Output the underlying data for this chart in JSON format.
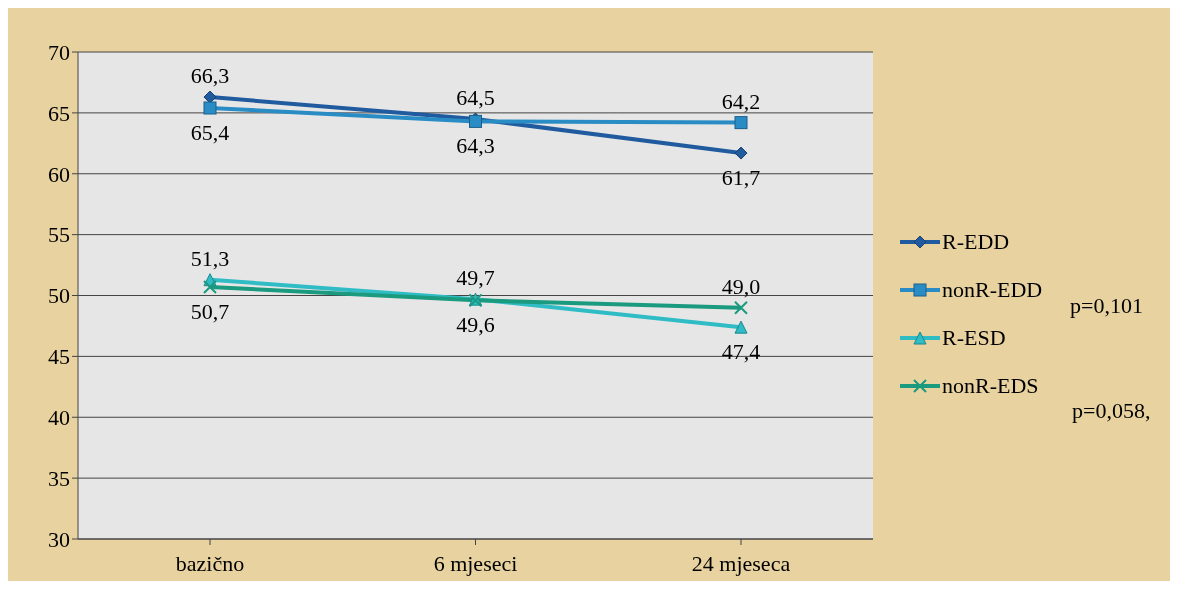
{
  "chart_data": {
    "type": "line",
    "categories": [
      "bazično",
      "6 mjeseci",
      "24 mjeseca"
    ],
    "series": [
      {
        "name": "R-EDD",
        "color": "#1f5b9e",
        "marker": "diamond",
        "values": [
          66.3,
          64.5,
          61.7
        ],
        "value_labels": [
          "66,3",
          "64,5",
          "61,7"
        ]
      },
      {
        "name": "nonR-EDD",
        "color": "#2a8cc4",
        "marker": "square",
        "values": [
          65.4,
          64.3,
          64.2
        ],
        "value_labels": [
          "65,4",
          "64,3",
          "64,2"
        ]
      },
      {
        "name": "R-ESD",
        "color": "#2fbcc4",
        "marker": "triangle",
        "values": [
          51.3,
          49.7,
          47.4
        ],
        "value_labels": [
          "51,3",
          "49,7",
          "47,4"
        ]
      },
      {
        "name": "nonR-EDS",
        "color": "#1a9a7e",
        "marker": "cross",
        "values": [
          50.7,
          49.6,
          49.0
        ],
        "value_labels": [
          "50,7",
          "49,6",
          "49,0"
        ]
      }
    ],
    "ylim": [
      30,
      70
    ],
    "yticks": [
      30,
      35,
      40,
      45,
      50,
      55,
      60,
      65,
      70
    ],
    "grid": "y",
    "legend": "right",
    "annotations": [
      "p=0,101",
      "p=0,058,"
    ]
  }
}
